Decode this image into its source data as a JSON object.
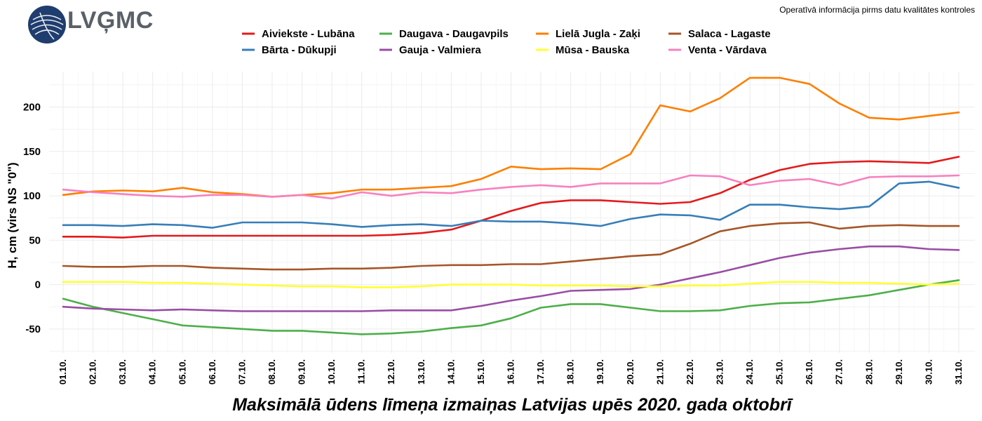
{
  "header": {
    "logo_text": "LVĢMC",
    "disclaimer": "Operatīvā informācija pirms datu kvalitātes kontroles"
  },
  "chart_data": {
    "type": "line",
    "title": "Maksimālā ūdens līmeņa izmaiņas Latvijas upēs 2020. gada oktobrī",
    "xlabel": "",
    "ylabel": "H, cm (virs NS \"0\")",
    "ylim": [
      -77,
      240
    ],
    "yticks": [
      -50,
      0,
      50,
      100,
      150,
      200
    ],
    "ytick_labels": [
      "-50",
      "0",
      "50",
      "100",
      "150",
      "200"
    ],
    "grid": true,
    "legend_position": "top",
    "categories": [
      "01.10.",
      "02.10.",
      "03.10.",
      "04.10.",
      "05.10.",
      "06.10.",
      "07.10.",
      "08.10.",
      "09.10.",
      "10.10.",
      "11.10.",
      "12.10.",
      "13.10.",
      "14.10.",
      "15.10.",
      "16.10.",
      "17.10.",
      "18.10.",
      "19.10.",
      "20.10.",
      "21.10.",
      "22.10.",
      "23.10.",
      "24.10.",
      "25.10.",
      "26.10.",
      "27.10.",
      "28.10.",
      "29.10.",
      "30.10.",
      "31.10."
    ],
    "series": [
      {
        "name": "Aiviekste - Lubāna",
        "color": "#e41a1c",
        "values": [
          54,
          54,
          53,
          55,
          55,
          55,
          55,
          55,
          55,
          55,
          55,
          56,
          58,
          62,
          72,
          83,
          92,
          95,
          95,
          93,
          91,
          93,
          103,
          118,
          129,
          136,
          138,
          139,
          138,
          137,
          144
        ]
      },
      {
        "name": "Bārta - Dūkupji",
        "color": "#377eb8",
        "values": [
          67,
          67,
          66,
          68,
          67,
          64,
          70,
          70,
          70,
          68,
          65,
          67,
          68,
          66,
          72,
          71,
          71,
          69,
          66,
          74,
          79,
          78,
          73,
          90,
          90,
          87,
          85,
          88,
          114,
          116,
          109
        ]
      },
      {
        "name": "Daugava - Daugavpils",
        "color": "#4daf4a",
        "values": [
          -16,
          -25,
          -32,
          -39,
          -46,
          -48,
          -50,
          -52,
          -52,
          -54,
          -56,
          -55,
          -53,
          -49,
          -46,
          -38,
          -26,
          -22,
          -22,
          -26,
          -30,
          -30,
          -29,
          -24,
          -21,
          -20,
          -16,
          -12,
          -6,
          0,
          5
        ]
      },
      {
        "name": "Gauja - Valmiera",
        "color": "#984ea3",
        "values": [
          -25,
          -27,
          -28,
          -29,
          -28,
          -29,
          -30,
          -30,
          -30,
          -30,
          -30,
          -29,
          -29,
          -29,
          -24,
          -18,
          -13,
          -7,
          -6,
          -5,
          0,
          7,
          14,
          22,
          30,
          36,
          40,
          43,
          43,
          40,
          39
        ]
      },
      {
        "name": "Lielā Jugla - Zaķi",
        "color": "#ff7f00",
        "values": [
          101,
          105,
          106,
          105,
          109,
          104,
          102,
          99,
          101,
          103,
          107,
          107,
          109,
          111,
          119,
          133,
          130,
          131,
          130,
          147,
          202,
          195,
          210,
          233,
          233,
          226,
          204,
          188,
          186,
          190,
          194
        ]
      },
      {
        "name": "Mūsa - Bauska",
        "color": "#ffff33",
        "values": [
          3,
          3,
          3,
          2,
          2,
          1,
          0,
          -1,
          -2,
          -2,
          -3,
          -3,
          -2,
          0,
          0,
          0,
          -1,
          -1,
          -1,
          -2,
          -2,
          -1,
          -1,
          1,
          3,
          3,
          2,
          2,
          1,
          0,
          1
        ]
      },
      {
        "name": "Salaca - Lagaste",
        "color": "#a65628",
        "values": [
          21,
          20,
          20,
          21,
          21,
          19,
          18,
          17,
          17,
          18,
          18,
          19,
          21,
          22,
          22,
          23,
          23,
          26,
          29,
          32,
          34,
          46,
          60,
          66,
          69,
          70,
          63,
          66,
          67,
          66,
          66
        ]
      },
      {
        "name": "Venta - Vārdava",
        "color": "#f781bf",
        "values": [
          107,
          104,
          102,
          100,
          99,
          101,
          101,
          99,
          101,
          97,
          104,
          100,
          104,
          103,
          107,
          110,
          112,
          110,
          114,
          114,
          114,
          123,
          122,
          112,
          117,
          119,
          112,
          121,
          122,
          122,
          123
        ]
      }
    ]
  }
}
